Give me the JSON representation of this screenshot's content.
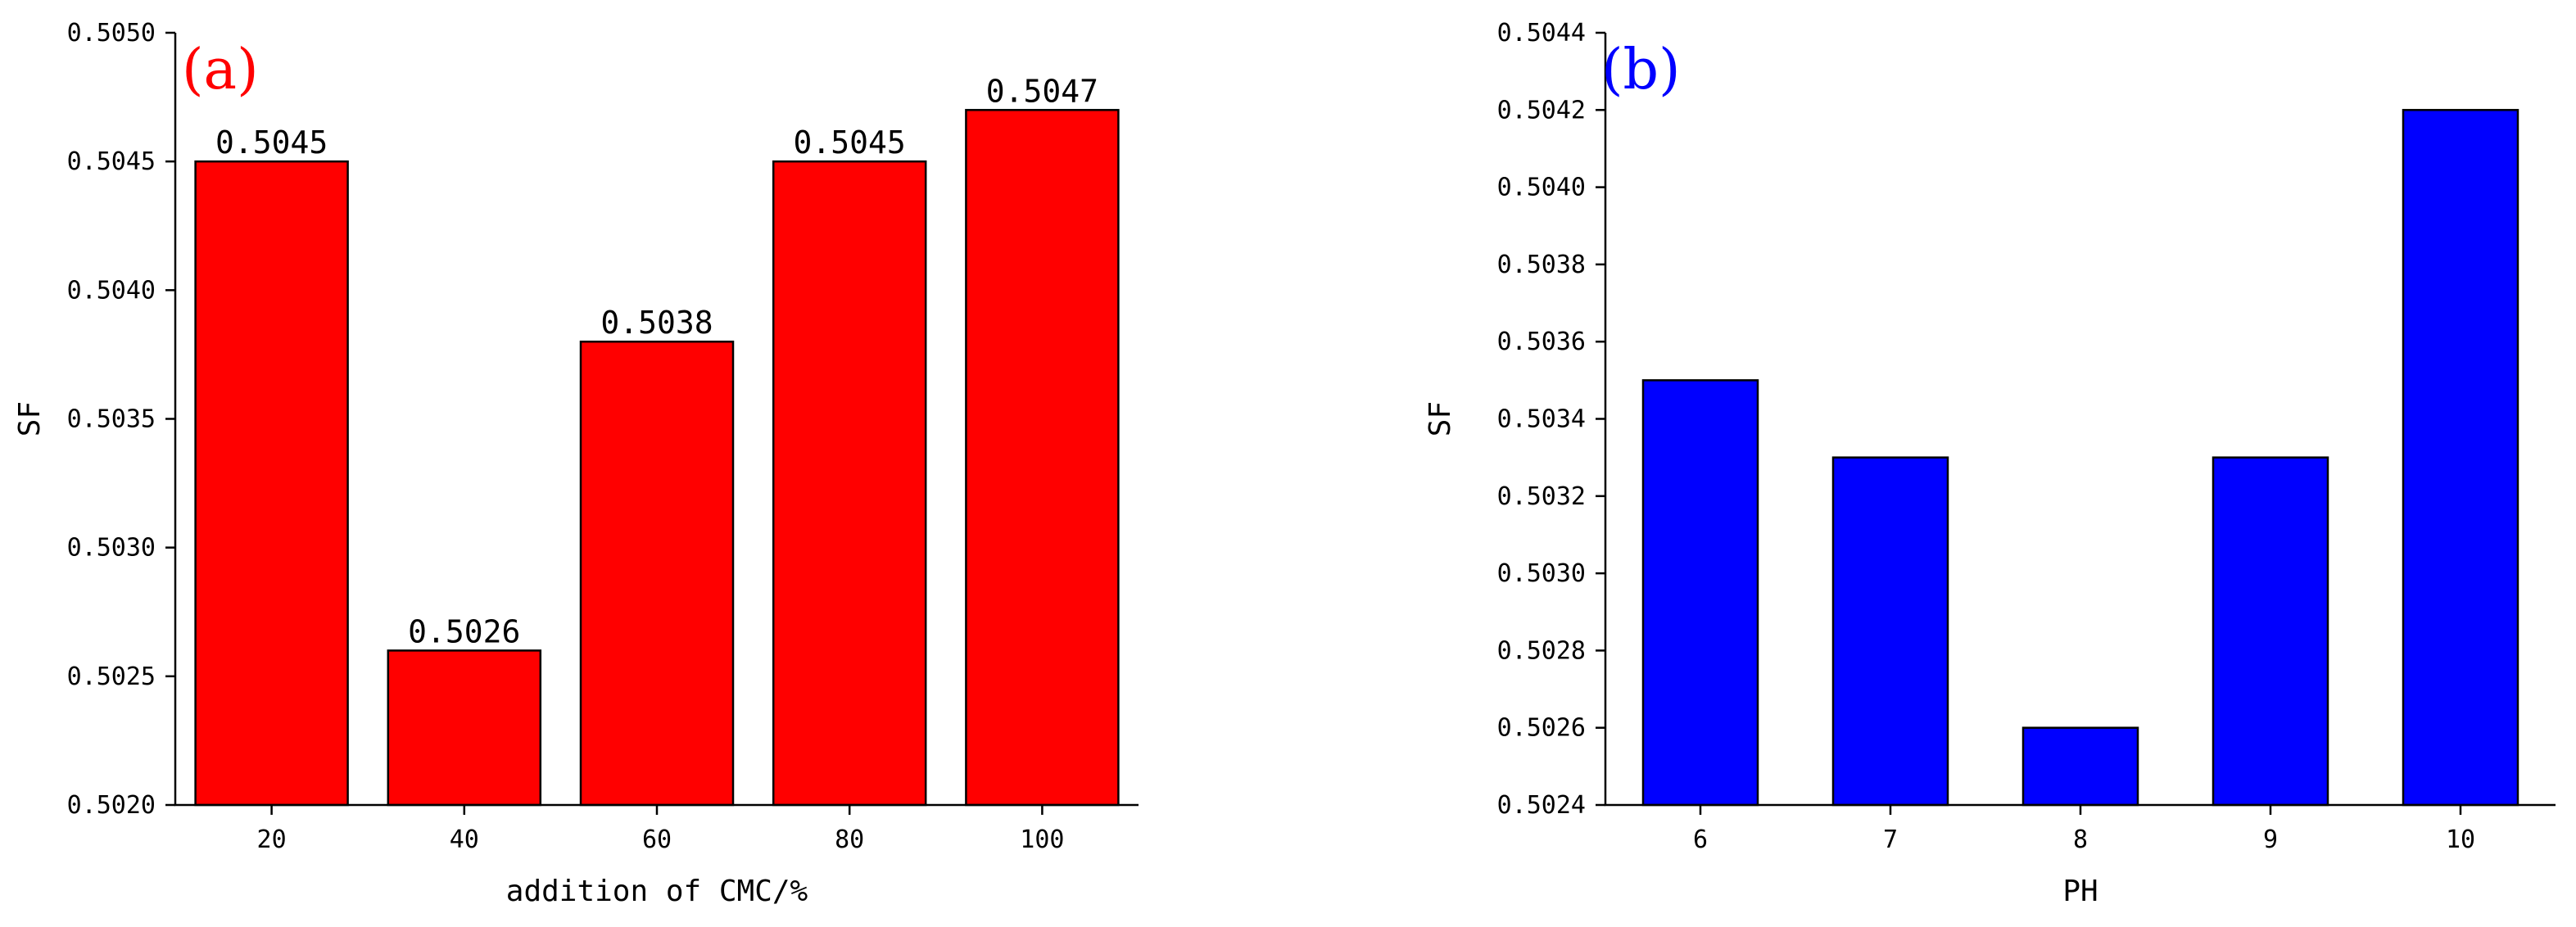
{
  "chart_data": [
    {
      "type": "bar",
      "panel_label": "(a)",
      "panel_label_color": "#ff0000",
      "bar_color": "#ff0000",
      "xlabel": "addition of CMC/%",
      "ylabel": "SF",
      "categories": [
        "20",
        "40",
        "60",
        "80",
        "100"
      ],
      "values": [
        0.5045,
        0.5026,
        0.5038,
        0.5045,
        0.5047
      ],
      "data_labels": [
        "0.5045",
        "0.5026",
        "0.5038",
        "0.5045",
        "0.5047"
      ],
      "ylim": [
        0.502,
        0.505
      ],
      "yticks": [
        "0.5020",
        "0.5025",
        "0.5030",
        "0.5035",
        "0.5040",
        "0.5045",
        "0.5050"
      ],
      "grid": false
    },
    {
      "type": "bar",
      "panel_label": "(b)",
      "panel_label_color": "#0000ff",
      "bar_color": "#0000ff",
      "xlabel": "PH",
      "ylabel": "SF",
      "categories": [
        "6",
        "7",
        "8",
        "9",
        "10"
      ],
      "values": [
        0.5035,
        0.5033,
        0.5026,
        0.5033,
        0.5042
      ],
      "data_labels": [],
      "ylim": [
        0.5024,
        0.5044
      ],
      "yticks": [
        "0.5024",
        "0.5026",
        "0.5028",
        "0.5030",
        "0.5032",
        "0.5034",
        "0.5036",
        "0.5038",
        "0.5040",
        "0.5042",
        "0.5044"
      ],
      "grid": false
    }
  ]
}
